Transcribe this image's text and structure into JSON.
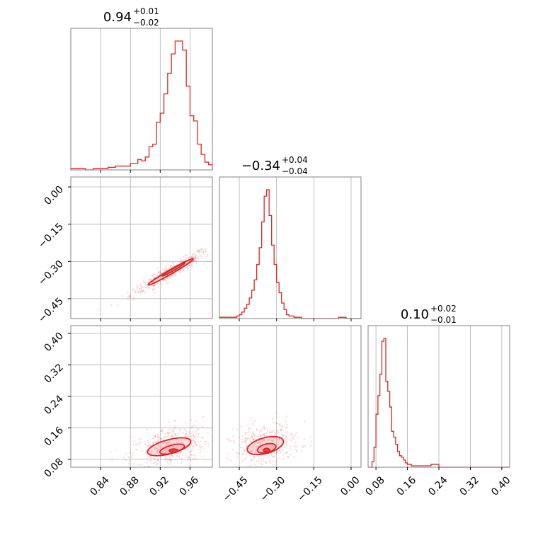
{
  "colors": {
    "accent": "#d62728",
    "fill": "#f4a3a6",
    "grid": "#b0b0b0",
    "frame": "#808080"
  },
  "chart_data": {
    "type": "corner",
    "grid": true,
    "panels": [
      {
        "id": "hist-1",
        "type": "histogram",
        "title": {
          "value": "0.94",
          "upper": "+0.01",
          "lower": "−0.02"
        },
        "xlim": [
          0.8,
          0.99
        ],
        "xticks": [
          0.84,
          0.88,
          0.92,
          0.96
        ],
        "bins": [
          0.8,
          0.81,
          0.82,
          0.83,
          0.84,
          0.85,
          0.86,
          0.87,
          0.875,
          0.88,
          0.885,
          0.89,
          0.895,
          0.9,
          0.905,
          0.91,
          0.915,
          0.92,
          0.925,
          0.93,
          0.935,
          0.94,
          0.945,
          0.95,
          0.955,
          0.96,
          0.965,
          0.97,
          0.975,
          0.98,
          0.985,
          0.99
        ],
        "counts": [
          1,
          1,
          0,
          1,
          1,
          2,
          3,
          3,
          3,
          5,
          5,
          8,
          7,
          10,
          18,
          20,
          37,
          44,
          59,
          75,
          90,
          100,
          100,
          93,
          65,
          42,
          38,
          20,
          12,
          6,
          4
        ]
      },
      {
        "id": "hist-2",
        "type": "histogram",
        "title": {
          "value": "−0.34",
          "upper": "+0.04",
          "lower": "−0.04"
        },
        "xlim": [
          -0.53,
          0.04
        ],
        "xticks": [
          -0.45,
          -0.3,
          -0.15,
          0.0
        ],
        "bins": [
          -0.53,
          -0.46,
          -0.45,
          -0.44,
          -0.43,
          -0.42,
          -0.41,
          -0.4,
          -0.39,
          -0.38,
          -0.37,
          -0.36,
          -0.35,
          -0.34,
          -0.33,
          -0.32,
          -0.31,
          -0.3,
          -0.29,
          -0.28,
          -0.27,
          -0.26,
          -0.25,
          -0.24,
          -0.23,
          -0.2,
          -0.05,
          -0.02,
          0.04
        ],
        "counts": [
          1,
          2,
          3,
          5,
          8,
          11,
          16,
          22,
          30,
          42,
          55,
          75,
          95,
          100,
          80,
          57,
          42,
          28,
          20,
          12,
          7,
          3,
          2,
          2,
          1,
          0,
          1,
          0
        ]
      },
      {
        "id": "hist-3",
        "type": "histogram",
        "title": {
          "value": "0.10",
          "upper": "+0.02",
          "lower": "−0.01"
        },
        "xlim": [
          0.06,
          0.42
        ],
        "xticks": [
          0.08,
          0.16,
          0.24,
          0.32,
          0.4
        ],
        "bins": [
          0.06,
          0.07,
          0.075,
          0.08,
          0.085,
          0.09,
          0.095,
          0.1,
          0.105,
          0.11,
          0.115,
          0.12,
          0.125,
          0.13,
          0.135,
          0.14,
          0.145,
          0.15,
          0.155,
          0.16,
          0.17,
          0.18,
          0.2,
          0.22,
          0.24,
          0.42
        ],
        "counts": [
          0,
          4,
          14,
          37,
          50,
          65,
          88,
          90,
          60,
          53,
          42,
          25,
          21,
          16,
          11,
          8,
          7,
          5,
          3,
          2,
          1,
          1,
          1,
          2,
          0
        ]
      },
      {
        "id": "scatter-1-2",
        "type": "scatter",
        "xlim": [
          0.8,
          0.99
        ],
        "ylim": [
          -0.53,
          0.04
        ],
        "xticks": [
          0.84,
          0.88,
          0.92,
          0.96
        ],
        "yticks": [
          0.0,
          -0.15,
          -0.3,
          -0.45
        ],
        "contours": [
          {
            "level": "outer",
            "center": [
              0.934,
              -0.342
            ],
            "rx": 0.035,
            "ry": 0.0085,
            "angle_deg": -30
          },
          {
            "level": "inner",
            "center": [
              0.938,
              -0.332
            ],
            "rx": 0.018,
            "ry": 0.0045,
            "angle_deg": -30
          }
        ]
      },
      {
        "id": "scatter-1-3",
        "type": "scatter",
        "xlim": [
          0.8,
          0.99
        ],
        "ylim": [
          0.06,
          0.42
        ],
        "xticks": [
          0.84,
          0.88,
          0.92,
          0.96
        ],
        "yticks": [
          0.4,
          0.32,
          0.24,
          0.16,
          0.08
        ],
        "contours": [
          {
            "level": "outer",
            "center": [
              0.932,
              0.112
            ],
            "rx": 0.03,
            "ry": 0.018,
            "angle_deg": -15
          },
          {
            "level": "mid",
            "center": [
              0.936,
              0.106
            ],
            "rx": 0.017,
            "ry": 0.01,
            "angle_deg": -15
          },
          {
            "level": "inner",
            "center": [
              0.938,
              0.102
            ],
            "rx": 0.006,
            "ry": 0.0045,
            "angle_deg": 0
          }
        ]
      },
      {
        "id": "scatter-2-3",
        "type": "scatter",
        "xlim": [
          -0.53,
          0.04
        ],
        "ylim": [
          0.06,
          0.42
        ],
        "xticks": [
          -0.45,
          -0.3,
          -0.15,
          0.0
        ],
        "yticks": [],
        "contours": [
          {
            "level": "outer",
            "center": [
              -0.345,
              0.115
            ],
            "rx": 0.075,
            "ry": 0.02,
            "angle_deg": -15
          },
          {
            "level": "mid",
            "center": [
              -0.34,
              0.108
            ],
            "rx": 0.038,
            "ry": 0.011,
            "angle_deg": -15
          },
          {
            "level": "inner",
            "center": [
              -0.34,
              0.103
            ],
            "rx": 0.013,
            "ry": 0.005,
            "angle_deg": 0
          }
        ]
      }
    ]
  }
}
